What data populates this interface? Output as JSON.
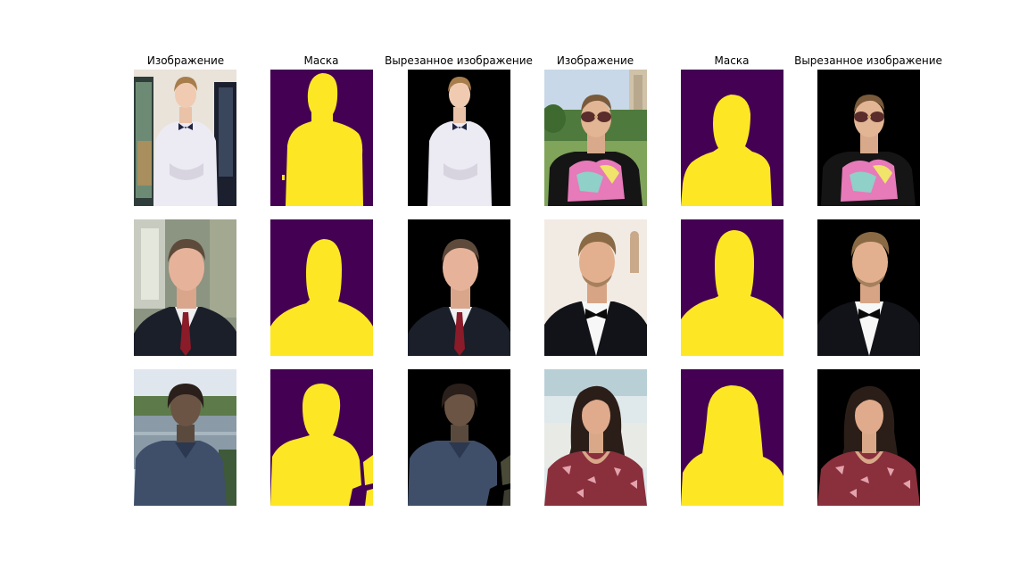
{
  "column_titles": [
    "Изображение",
    "Маска",
    "Вырезанное изображение",
    "Изображение",
    "Маска",
    "Вырезанное изображение"
  ],
  "colors": {
    "mask_background": "#440154",
    "mask_foreground": "#fde725",
    "cutout_background": "#000000"
  },
  "panels": [
    {
      "row": 1,
      "col": 1,
      "kind": "photo",
      "subject": "young man, white shirt, bow tie, painting background"
    },
    {
      "row": 1,
      "col": 2,
      "kind": "mask"
    },
    {
      "row": 1,
      "col": 3,
      "kind": "cutout"
    },
    {
      "row": 1,
      "col": 4,
      "kind": "photo",
      "subject": "man with sunglasses, colorful t-shirt, tower building background"
    },
    {
      "row": 1,
      "col": 5,
      "kind": "mask"
    },
    {
      "row": 1,
      "col": 6,
      "kind": "cutout"
    },
    {
      "row": 2,
      "col": 1,
      "kind": "photo",
      "subject": "man in dark suit, red tie, window background"
    },
    {
      "row": 2,
      "col": 2,
      "kind": "mask"
    },
    {
      "row": 2,
      "col": 3,
      "kind": "cutout"
    },
    {
      "row": 2,
      "col": 4,
      "kind": "photo",
      "subject": "man in tuxedo, bow tie, light background"
    },
    {
      "row": 2,
      "col": 5,
      "kind": "mask"
    },
    {
      "row": 2,
      "col": 6,
      "kind": "cutout"
    },
    {
      "row": 3,
      "col": 1,
      "kind": "photo",
      "subject": "young man, blue shirt, river background"
    },
    {
      "row": 3,
      "col": 2,
      "kind": "mask"
    },
    {
      "row": 3,
      "col": 3,
      "kind": "cutout"
    },
    {
      "row": 3,
      "col": 4,
      "kind": "photo",
      "subject": "woman, dark hair, red patterned dress"
    },
    {
      "row": 3,
      "col": 5,
      "kind": "mask"
    },
    {
      "row": 3,
      "col": 6,
      "kind": "cutout"
    }
  ]
}
